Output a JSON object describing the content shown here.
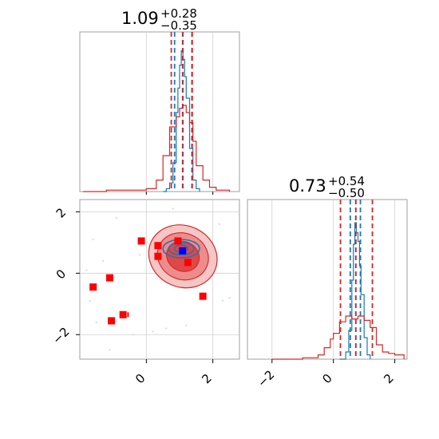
{
  "chart_data": [
    {
      "type": "histogram",
      "panel": "top-left",
      "title_main": "1.09",
      "title_sup": "+0.28",
      "title_sub": "−0.35",
      "xlim": [
        -2,
        2.8
      ],
      "grid": true,
      "series": [
        {
          "name": "",
          "color": "#1f77b4",
          "x": [
            0.5,
            0.6,
            0.7,
            0.8,
            0.9,
            0.95,
            1.0,
            1.05,
            1.1,
            1.15,
            1.2,
            1.3,
            1.4,
            1.5,
            1.6
          ],
          "values": [
            0.0,
            0.02,
            0.06,
            0.2,
            0.55,
            0.72,
            0.88,
            0.98,
            0.92,
            0.8,
            0.65,
            0.3,
            0.08,
            0.02,
            0.0
          ],
          "quantile_lines": [
            0.85,
            1.09,
            1.37
          ]
        },
        {
          "name": "",
          "color": "#d62728",
          "x": [
            -1.9,
            -1.2,
            -0.5,
            0.0,
            0.3,
            0.5,
            0.7,
            0.9,
            1.0,
            1.1,
            1.2,
            1.3,
            1.4,
            1.5,
            1.7,
            1.9,
            2.1,
            2.5
          ],
          "values": [
            0.0,
            0.01,
            0.01,
            0.02,
            0.08,
            0.25,
            0.45,
            0.52,
            0.58,
            0.6,
            0.55,
            0.48,
            0.35,
            0.18,
            0.08,
            0.03,
            0.01,
            0.0
          ],
          "quantile_lines": [
            0.75,
            1.1,
            1.38
          ]
        }
      ]
    },
    {
      "type": "histogram",
      "panel": "bottom-right",
      "title_main": "0.73",
      "title_sup": "+0.54",
      "title_sub": "−0.50",
      "xlim": [
        -2.8,
        2.4
      ],
      "xticks": [
        "−2",
        "0",
        "2"
      ],
      "xtick_values": [
        -2,
        0,
        2
      ],
      "grid": true,
      "series": [
        {
          "name": "",
          "color": "#1f77b4",
          "x": [
            0.2,
            0.4,
            0.5,
            0.6,
            0.65,
            0.7,
            0.75,
            0.8,
            0.85,
            0.9,
            1.0,
            1.1,
            1.2
          ],
          "values": [
            0.0,
            0.05,
            0.2,
            0.55,
            0.8,
            0.95,
            0.88,
            0.82,
            0.65,
            0.45,
            0.15,
            0.03,
            0.0
          ],
          "quantile_lines": [
            0.55,
            0.73,
            0.88
          ]
        },
        {
          "name": "",
          "color": "#d62728",
          "x": [
            -2.0,
            -1.0,
            -0.5,
            -0.3,
            -0.1,
            0.0,
            0.2,
            0.4,
            0.6,
            0.8,
            1.0,
            1.2,
            1.4,
            1.6,
            1.8,
            2.0,
            2.3
          ],
          "values": [
            0.0,
            0.01,
            0.03,
            0.08,
            0.14,
            0.18,
            0.26,
            0.3,
            0.28,
            0.3,
            0.27,
            0.22,
            0.1,
            0.05,
            0.04,
            0.03,
            0.0
          ],
          "quantile_lines": [
            0.23,
            0.73,
            1.27
          ]
        }
      ]
    },
    {
      "type": "scatter",
      "panel": "bottom-left",
      "xlim": [
        -2,
        2.8
      ],
      "ylim": [
        -2.8,
        2.4
      ],
      "xticks": [
        "0",
        "2"
      ],
      "xtick_values": [
        0,
        2
      ],
      "yticks": [
        "−2",
        "0",
        "2"
      ],
      "ytick_values": [
        -2,
        0,
        2
      ],
      "grid": true,
      "square_markers": [
        {
          "x": -1.6,
          "y": -0.45
        },
        {
          "x": -1.1,
          "y": -0.15
        },
        {
          "x": -0.15,
          "y": 1.05
        },
        {
          "x": 0.35,
          "y": 0.9
        },
        {
          "x": 0.35,
          "y": 0.55
        },
        {
          "x": 0.95,
          "y": 1.05
        },
        {
          "x": 1.25,
          "y": 0.35
        },
        {
          "x": 1.7,
          "y": -0.75
        },
        {
          "x": -0.7,
          "y": -1.35
        },
        {
          "x": -1.05,
          "y": -1.55
        }
      ],
      "square_color": "#ff0000",
      "center_marker": {
        "x": 1.09,
        "y": 0.73,
        "color": "#0000ff"
      },
      "contour_colors": [
        "#d62728",
        "#1f77b4"
      ]
    }
  ]
}
